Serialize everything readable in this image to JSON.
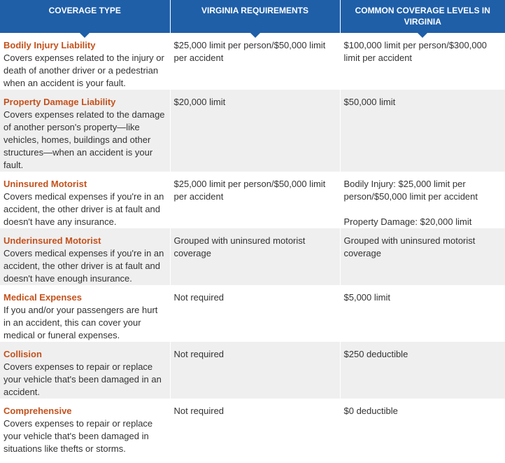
{
  "header": {
    "columns": [
      "Coverage Type",
      "Virginia Requirements",
      "Common Coverage Levels in Virginia"
    ]
  },
  "rows": [
    {
      "title": "Bodily Injury Liability",
      "description": "Covers expenses related to the injury or death of another driver or a pedestrian when an accident is your fault.",
      "requirement": "$25,000 limit per person/$50,000 limit per accident",
      "common": [
        "$100,000 limit per person/$300,000 limit per accident"
      ]
    },
    {
      "title": "Property Damage Liability",
      "description": "Covers expenses related to the damage of another person's property—like vehicles, homes, buildings and other structures—when an accident is your fault.",
      "requirement": "$20,000 limit",
      "common": [
        "$50,000 limit"
      ]
    },
    {
      "title": "Uninsured Motorist",
      "description": "Covers medical expenses if you're in an accident, the other driver is at fault and doesn't have any insurance.",
      "requirement": "$25,000 limit per person/$50,000 limit per accident",
      "common": [
        "Bodily Injury: $25,000 limit per person/$50,000 limit per accident",
        "Property Damage: $20,000 limit"
      ]
    },
    {
      "title": "Underinsured Motorist",
      "description": "Covers medical expenses if you're in an accident, the other driver is at fault and doesn't have enough insurance.",
      "requirement": "Grouped with uninsured motorist coverage",
      "common": [
        "Grouped with uninsured motorist coverage"
      ]
    },
    {
      "title": "Medical Expenses",
      "description": "If you and/or your passengers are hurt in an accident, this can cover your medical or funeral expenses.",
      "requirement": "Not required",
      "common": [
        "$5,000 limit"
      ]
    },
    {
      "title": "Collision",
      "description": "Covers expenses to repair or replace your vehicle that's been damaged in an accident.",
      "requirement": "Not required",
      "common": [
        "$250 deductible"
      ]
    },
    {
      "title": "Comprehensive",
      "description": "Covers expenses to repair or replace your vehicle that's been damaged in situations like thefts or storms.",
      "requirement": "Not required",
      "common": [
        "$0 deductible"
      ]
    }
  ]
}
